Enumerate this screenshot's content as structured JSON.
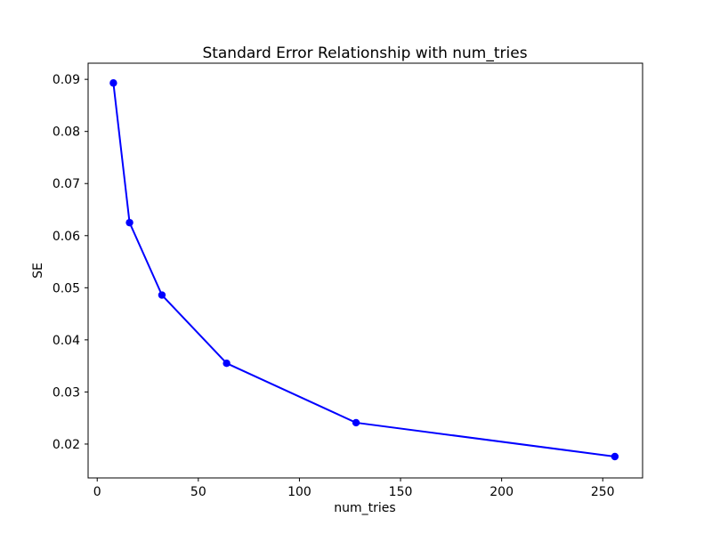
{
  "chart_data": {
    "type": "line",
    "title": "Standard Error Relationship with num_tries",
    "xlabel": "num_tries",
    "ylabel": "SE",
    "x": [
      8,
      16,
      32,
      64,
      128,
      256
    ],
    "y": [
      0.0893,
      0.0625,
      0.0486,
      0.0355,
      0.0241,
      0.0176
    ],
    "x_ticks": [
      0,
      50,
      100,
      150,
      200,
      250
    ],
    "y_ticks": [
      0.02,
      0.03,
      0.04,
      0.05,
      0.06,
      0.07,
      0.08,
      0.09
    ],
    "xlim": [
      -4.5,
      269.7
    ],
    "ylim": [
      0.0135,
      0.0931
    ],
    "line_color": "#0000ff",
    "marker": "circle",
    "grid": false,
    "legend": "none",
    "background_color": "#ffffff",
    "spine_color": "#000000"
  }
}
